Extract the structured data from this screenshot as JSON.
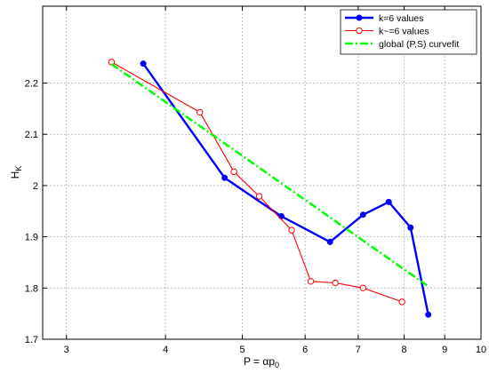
{
  "chart_data": {
    "type": "line",
    "x_scale": "log",
    "xlim": [
      2.8,
      10
    ],
    "ylim": [
      1.7,
      2.35
    ],
    "grid": true,
    "legend_position": "top-right",
    "xlabel_parts": {
      "before": "P = ",
      "alpha": "α",
      "p": "p",
      "sub": "0"
    },
    "ylabel_parts": {
      "main": "H",
      "sub": "K"
    },
    "x_ticks": [
      {
        "v": 3,
        "label": "3"
      },
      {
        "v": 4,
        "label": "4"
      },
      {
        "v": 5,
        "label": "5"
      },
      {
        "v": 6,
        "label": "6"
      },
      {
        "v": 7,
        "label": "7"
      },
      {
        "v": 8,
        "label": "8"
      },
      {
        "v": 9,
        "label": "9"
      },
      {
        "v": 10,
        "label": "10"
      }
    ],
    "y_ticks": [
      {
        "v": 1.7,
        "label": "1.7"
      },
      {
        "v": 1.8,
        "label": "1.8"
      },
      {
        "v": 1.9,
        "label": "1.9"
      },
      {
        "v": 2.0,
        "label": "2"
      },
      {
        "v": 2.1,
        "label": "2.1"
      },
      {
        "v": 2.2,
        "label": "2.2"
      }
    ],
    "series": [
      {
        "name": "k=6 values",
        "color": "#0000ff",
        "marker": "filled-circle",
        "line_width": "thick",
        "x": [
          3.75,
          4.75,
          5.6,
          6.45,
          7.1,
          7.65,
          8.15,
          8.58
        ],
        "y": [
          2.238,
          2.015,
          1.94,
          1.89,
          1.943,
          1.968,
          1.918,
          1.748
        ]
      },
      {
        "name": "k~=6 values",
        "color": "#ff0000",
        "marker": "open-circle",
        "line_width": "thin",
        "x": [
          3.42,
          4.42,
          4.88,
          5.25,
          5.77,
          6.1,
          6.55,
          7.1,
          7.95
        ],
        "y": [
          2.241,
          2.143,
          2.027,
          1.979,
          1.913,
          1.813,
          1.81,
          1.8,
          1.773
        ]
      },
      {
        "name": "global (P,S) curvefit",
        "color": "#00ff00",
        "marker": "none",
        "line_style": "dash-dot",
        "x": [
          3.42,
          8.55
        ],
        "y": [
          2.237,
          1.805
        ]
      }
    ]
  }
}
